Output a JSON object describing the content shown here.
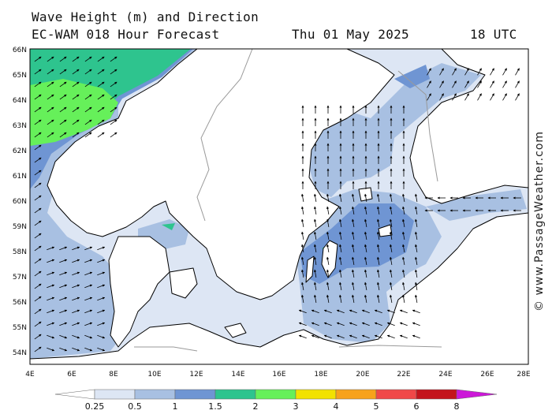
{
  "header": {
    "title": "Wave Height (m) and Direction",
    "model": "EC-WAM 018 Hour Forecast",
    "date": "Thu 01 May 2025",
    "time": "18 UTC"
  },
  "watermark": "© www.PassageWeather.com",
  "axes": {
    "lat_labels": [
      "66N",
      "65N",
      "64N",
      "63N",
      "62N",
      "61N",
      "60N",
      "59N",
      "58N",
      "57N",
      "56N",
      "55N",
      "54N"
    ],
    "lon_labels": [
      "4E",
      "6E",
      "8E",
      "10E",
      "12E",
      "14E",
      "16E",
      "18E",
      "20E",
      "22E",
      "24E",
      "26E",
      "28E"
    ]
  },
  "legend": {
    "labels": [
      "0.25",
      "0.5",
      "1",
      "1.5",
      "2",
      "3",
      "4",
      "5",
      "6",
      "8"
    ],
    "colors": [
      "#ffffff",
      "#dde6f4",
      "#a8c0e2",
      "#6f95d3",
      "#2ec48e",
      "#66f05a",
      "#f2e200",
      "#f7a21b",
      "#f04848",
      "#c4141c",
      "#cc18d8"
    ]
  },
  "colors": {
    "land": "#ffffff",
    "coast": "#000000",
    "border": "#9a9a9a"
  }
}
